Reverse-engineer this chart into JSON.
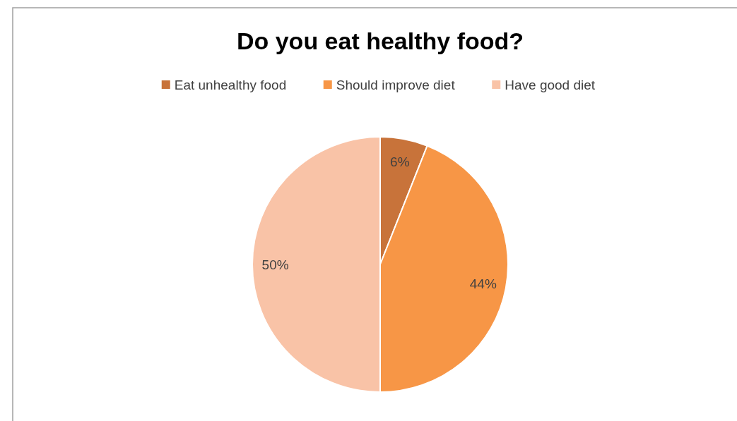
{
  "chart_data": {
    "type": "pie",
    "title": "Do you eat healthy food?",
    "categories": [
      "Eat unhealthy food",
      "Should improve diet",
      "Have good diet"
    ],
    "values": [
      6,
      44,
      50
    ],
    "colors": [
      "#c8733a",
      "#f79646",
      "#f9c3a7"
    ],
    "value_labels": [
      "6%",
      "44%",
      "50%"
    ],
    "legend": "top"
  }
}
